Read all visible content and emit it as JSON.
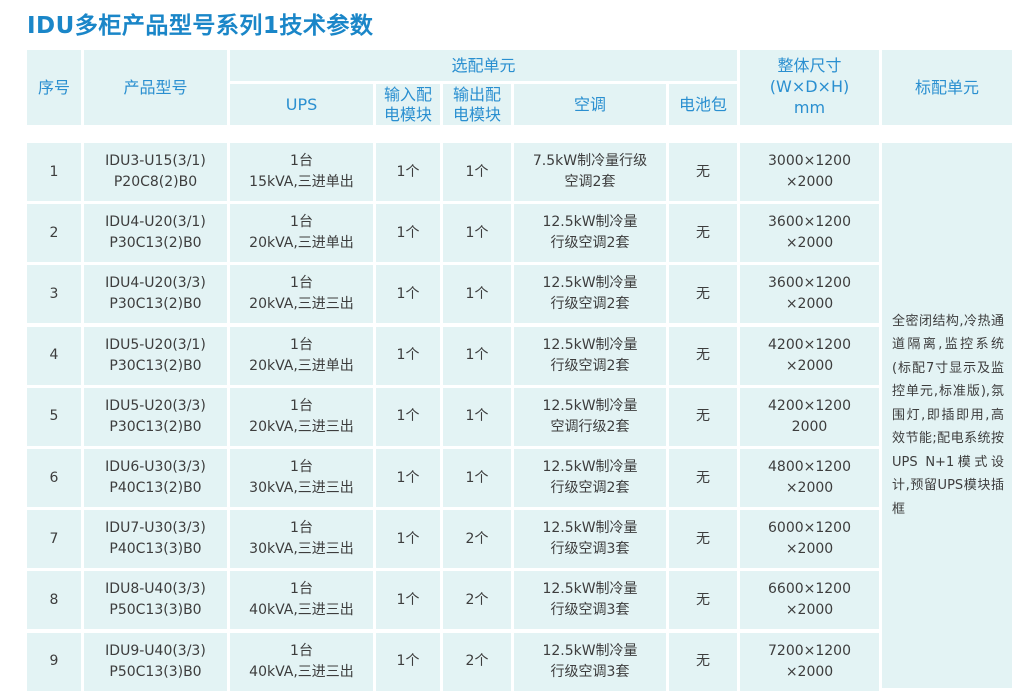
{
  "title": "IDU多柜产品型号系列1技术参数",
  "header": {
    "seq": "序号",
    "model": "产品型号",
    "optional_group": "选配单元",
    "ups": "UPS",
    "input_module": [
      "输入配",
      "电模块"
    ],
    "output_module": [
      "输出配",
      "电模块"
    ],
    "ac": "空调",
    "battery": "电池包",
    "size": [
      "整体尺寸",
      "(W×D×H)",
      "mm"
    ],
    "standard": "标配单元"
  },
  "rows": [
    {
      "seq": "1",
      "model": [
        "IDU3-U15(3/1)",
        "P20C8(2)B0"
      ],
      "ups": [
        "1台",
        "15kVA,三进单出"
      ],
      "input": "1个",
      "output": "1个",
      "ac": [
        "7.5kW制冷量行级",
        "空调2套"
      ],
      "battery": "无",
      "size": [
        "3000×1200",
        "×2000"
      ]
    },
    {
      "seq": "2",
      "model": [
        "IDU4-U20(3/1)",
        "P30C13(2)B0"
      ],
      "ups": [
        "1台",
        "20kVA,三进单出"
      ],
      "input": "1个",
      "output": "1个",
      "ac": [
        "12.5kW制冷量",
        "行级空调2套"
      ],
      "battery": "无",
      "size": [
        "3600×1200",
        "×2000"
      ]
    },
    {
      "seq": "3",
      "model": [
        "IDU4-U20(3/3)",
        "P30C13(2)B0"
      ],
      "ups": [
        "1台",
        "20kVA,三进三出"
      ],
      "input": "1个",
      "output": "1个",
      "ac": [
        "12.5kW制冷量",
        "行级空调2套"
      ],
      "battery": "无",
      "size": [
        "3600×1200",
        "×2000"
      ]
    },
    {
      "seq": "4",
      "model": [
        "IDU5-U20(3/1)",
        "P30C13(2)B0"
      ],
      "ups": [
        "1台",
        "20kVA,三进单出"
      ],
      "input": "1个",
      "output": "1个",
      "ac": [
        "12.5kW制冷量",
        "行级空调2套"
      ],
      "battery": "无",
      "size": [
        "4200×1200",
        "×2000"
      ]
    },
    {
      "seq": "5",
      "model": [
        "IDU5-U20(3/3)",
        "P30C13(2)B0"
      ],
      "ups": [
        "1台",
        "20kVA,三进三出"
      ],
      "input": "1个",
      "output": "1个",
      "ac": [
        "12.5kW制冷量",
        "空调行级2套"
      ],
      "battery": "无",
      "size": [
        "4200×1200",
        "2000"
      ]
    },
    {
      "seq": "6",
      "model": [
        "IDU6-U30(3/3)",
        "P40C13(2)B0"
      ],
      "ups": [
        "1台",
        "30kVA,三进三出"
      ],
      "input": "1个",
      "output": "1个",
      "ac": [
        "12.5kW制冷量",
        "行级空调2套"
      ],
      "battery": "无",
      "size": [
        "4800×1200",
        "×2000"
      ]
    },
    {
      "seq": "7",
      "model": [
        "IDU7-U30(3/3)",
        "P40C13(3)B0"
      ],
      "ups": [
        "1台",
        "30kVA,三进三出"
      ],
      "input": "1个",
      "output": "2个",
      "ac": [
        "12.5kW制冷量",
        "行级空调3套"
      ],
      "battery": "无",
      "size": [
        "6000×1200",
        "×2000"
      ]
    },
    {
      "seq": "8",
      "model": [
        "IDU8-U40(3/3)",
        "P50C13(3)B0"
      ],
      "ups": [
        "1台",
        "40kVA,三进三出"
      ],
      "input": "1个",
      "output": "2个",
      "ac": [
        "12.5kW制冷量",
        "行级空调3套"
      ],
      "battery": "无",
      "size": [
        "6600×1200",
        "×2000"
      ]
    },
    {
      "seq": "9",
      "model": [
        "IDU9-U40(3/3)",
        "P50C13(3)B0"
      ],
      "ups": [
        "1台",
        "40kVA,三进三出"
      ],
      "input": "1个",
      "output": "2个",
      "ac": [
        "12.5kW制冷量",
        "行级空调3套"
      ],
      "battery": "无",
      "size": [
        "7200×1200",
        "×2000"
      ]
    }
  ],
  "standard_text": "全密闭结构,冷热通道隔离,监控系统(标配7寸显示及监控单元,标准版),氛围灯,即插即用,高效节能;配电系统按UPS N+1模式设计,预留UPS模块插框"
}
